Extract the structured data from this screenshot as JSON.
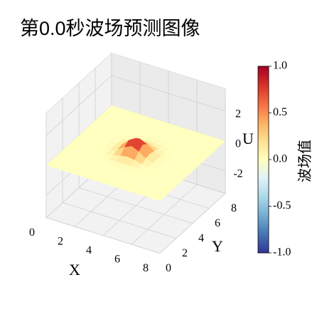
{
  "chart_data": {
    "type": "surface3d",
    "title": "第0.0秒波场预测图像",
    "xlabel": "X",
    "ylabel": "Y",
    "zlabel": "U",
    "x": [
      0,
      0.5,
      1,
      1.5,
      2,
      2.5,
      3,
      3.5,
      4,
      4.5,
      5,
      5.5,
      6,
      6.5,
      7,
      7.5,
      8
    ],
    "y": [
      0,
      0.5,
      1,
      1.5,
      2,
      2.5,
      3,
      3.5,
      4,
      4.5,
      5,
      5.5,
      6,
      6.5,
      7,
      7.5,
      8
    ],
    "z": [
      [
        0,
        0,
        0,
        0,
        0,
        0,
        0,
        0,
        0,
        0,
        0,
        0,
        0,
        0,
        0,
        0,
        0
      ],
      [
        0,
        0,
        0,
        0,
        0,
        0,
        0,
        0,
        0,
        0,
        0,
        0,
        0,
        0,
        0,
        0,
        0
      ],
      [
        0,
        0,
        0,
        0,
        0,
        0,
        0,
        0,
        0,
        0,
        0,
        0,
        0,
        0,
        0,
        0,
        0
      ],
      [
        0,
        0,
        0,
        0,
        0,
        0,
        0,
        0,
        0,
        0,
        0,
        0,
        0,
        0,
        0,
        0,
        0
      ],
      [
        0,
        0,
        0,
        0,
        0,
        0,
        0,
        0,
        0,
        0,
        0,
        0,
        0,
        0,
        0,
        0,
        0
      ],
      [
        0,
        0,
        0,
        0,
        0,
        0,
        0.01,
        0.03,
        0.04,
        0.03,
        0.01,
        0,
        0,
        0,
        0,
        0,
        0
      ],
      [
        0,
        0,
        0,
        0,
        0,
        0.01,
        0.06,
        0.18,
        0.25,
        0.18,
        0.06,
        0.01,
        0,
        0,
        0,
        0,
        0
      ],
      [
        0,
        0,
        0,
        0,
        0,
        0.03,
        0.18,
        0.5,
        0.71,
        0.5,
        0.18,
        0.03,
        0,
        0,
        0,
        0,
        0
      ],
      [
        0,
        0,
        0,
        0,
        0,
        0.04,
        0.25,
        0.71,
        1,
        0.71,
        0.25,
        0.04,
        0,
        0,
        0,
        0,
        0
      ],
      [
        0,
        0,
        0,
        0,
        0,
        0.03,
        0.18,
        0.5,
        0.71,
        0.5,
        0.18,
        0.03,
        0,
        0,
        0,
        0,
        0
      ],
      [
        0,
        0,
        0,
        0,
        0,
        0.01,
        0.06,
        0.18,
        0.25,
        0.18,
        0.06,
        0.01,
        0,
        0,
        0,
        0,
        0
      ],
      [
        0,
        0,
        0,
        0,
        0,
        0,
        0.01,
        0.03,
        0.04,
        0.03,
        0.01,
        0,
        0,
        0,
        0,
        0,
        0
      ],
      [
        0,
        0,
        0,
        0,
        0,
        0,
        0,
        0,
        0,
        0,
        0,
        0,
        0,
        0,
        0,
        0,
        0
      ],
      [
        0,
        0,
        0,
        0,
        0,
        0,
        0,
        0,
        0,
        0,
        0,
        0,
        0,
        0,
        0,
        0,
        0
      ],
      [
        0,
        0,
        0,
        0,
        0,
        0,
        0,
        0,
        0,
        0,
        0,
        0,
        0,
        0,
        0,
        0,
        0
      ],
      [
        0,
        0,
        0,
        0,
        0,
        0,
        0,
        0,
        0,
        0,
        0,
        0,
        0,
        0,
        0,
        0,
        0
      ],
      [
        0,
        0,
        0,
        0,
        0,
        0,
        0,
        0,
        0,
        0,
        0,
        0,
        0,
        0,
        0,
        0,
        0
      ]
    ],
    "xlim": [
      0,
      8
    ],
    "ylim": [
      0,
      8
    ],
    "zlim": [
      -3.5,
      3.5
    ],
    "xticks": [
      0,
      2,
      4,
      6,
      8
    ],
    "yticks": [
      0,
      2,
      4,
      6,
      8
    ],
    "zticks": [
      -2,
      0,
      2
    ],
    "grid": true,
    "colormap": [
      "#313695",
      "#4575b4",
      "#74add1",
      "#abd9e9",
      "#e0f3f8",
      "#ffffbf",
      "#fee090",
      "#fdae61",
      "#f46d43",
      "#d73027",
      "#a50026"
    ],
    "colorbar": {
      "label": "波场值",
      "clim": [
        -1,
        1
      ],
      "ticks": [
        {
          "value": -1,
          "label": "-1.0"
        },
        -0.5,
        {
          "value": 0,
          "label": "0.0"
        },
        0.5,
        {
          "value": 1,
          "label": "1.0"
        }
      ]
    }
  }
}
